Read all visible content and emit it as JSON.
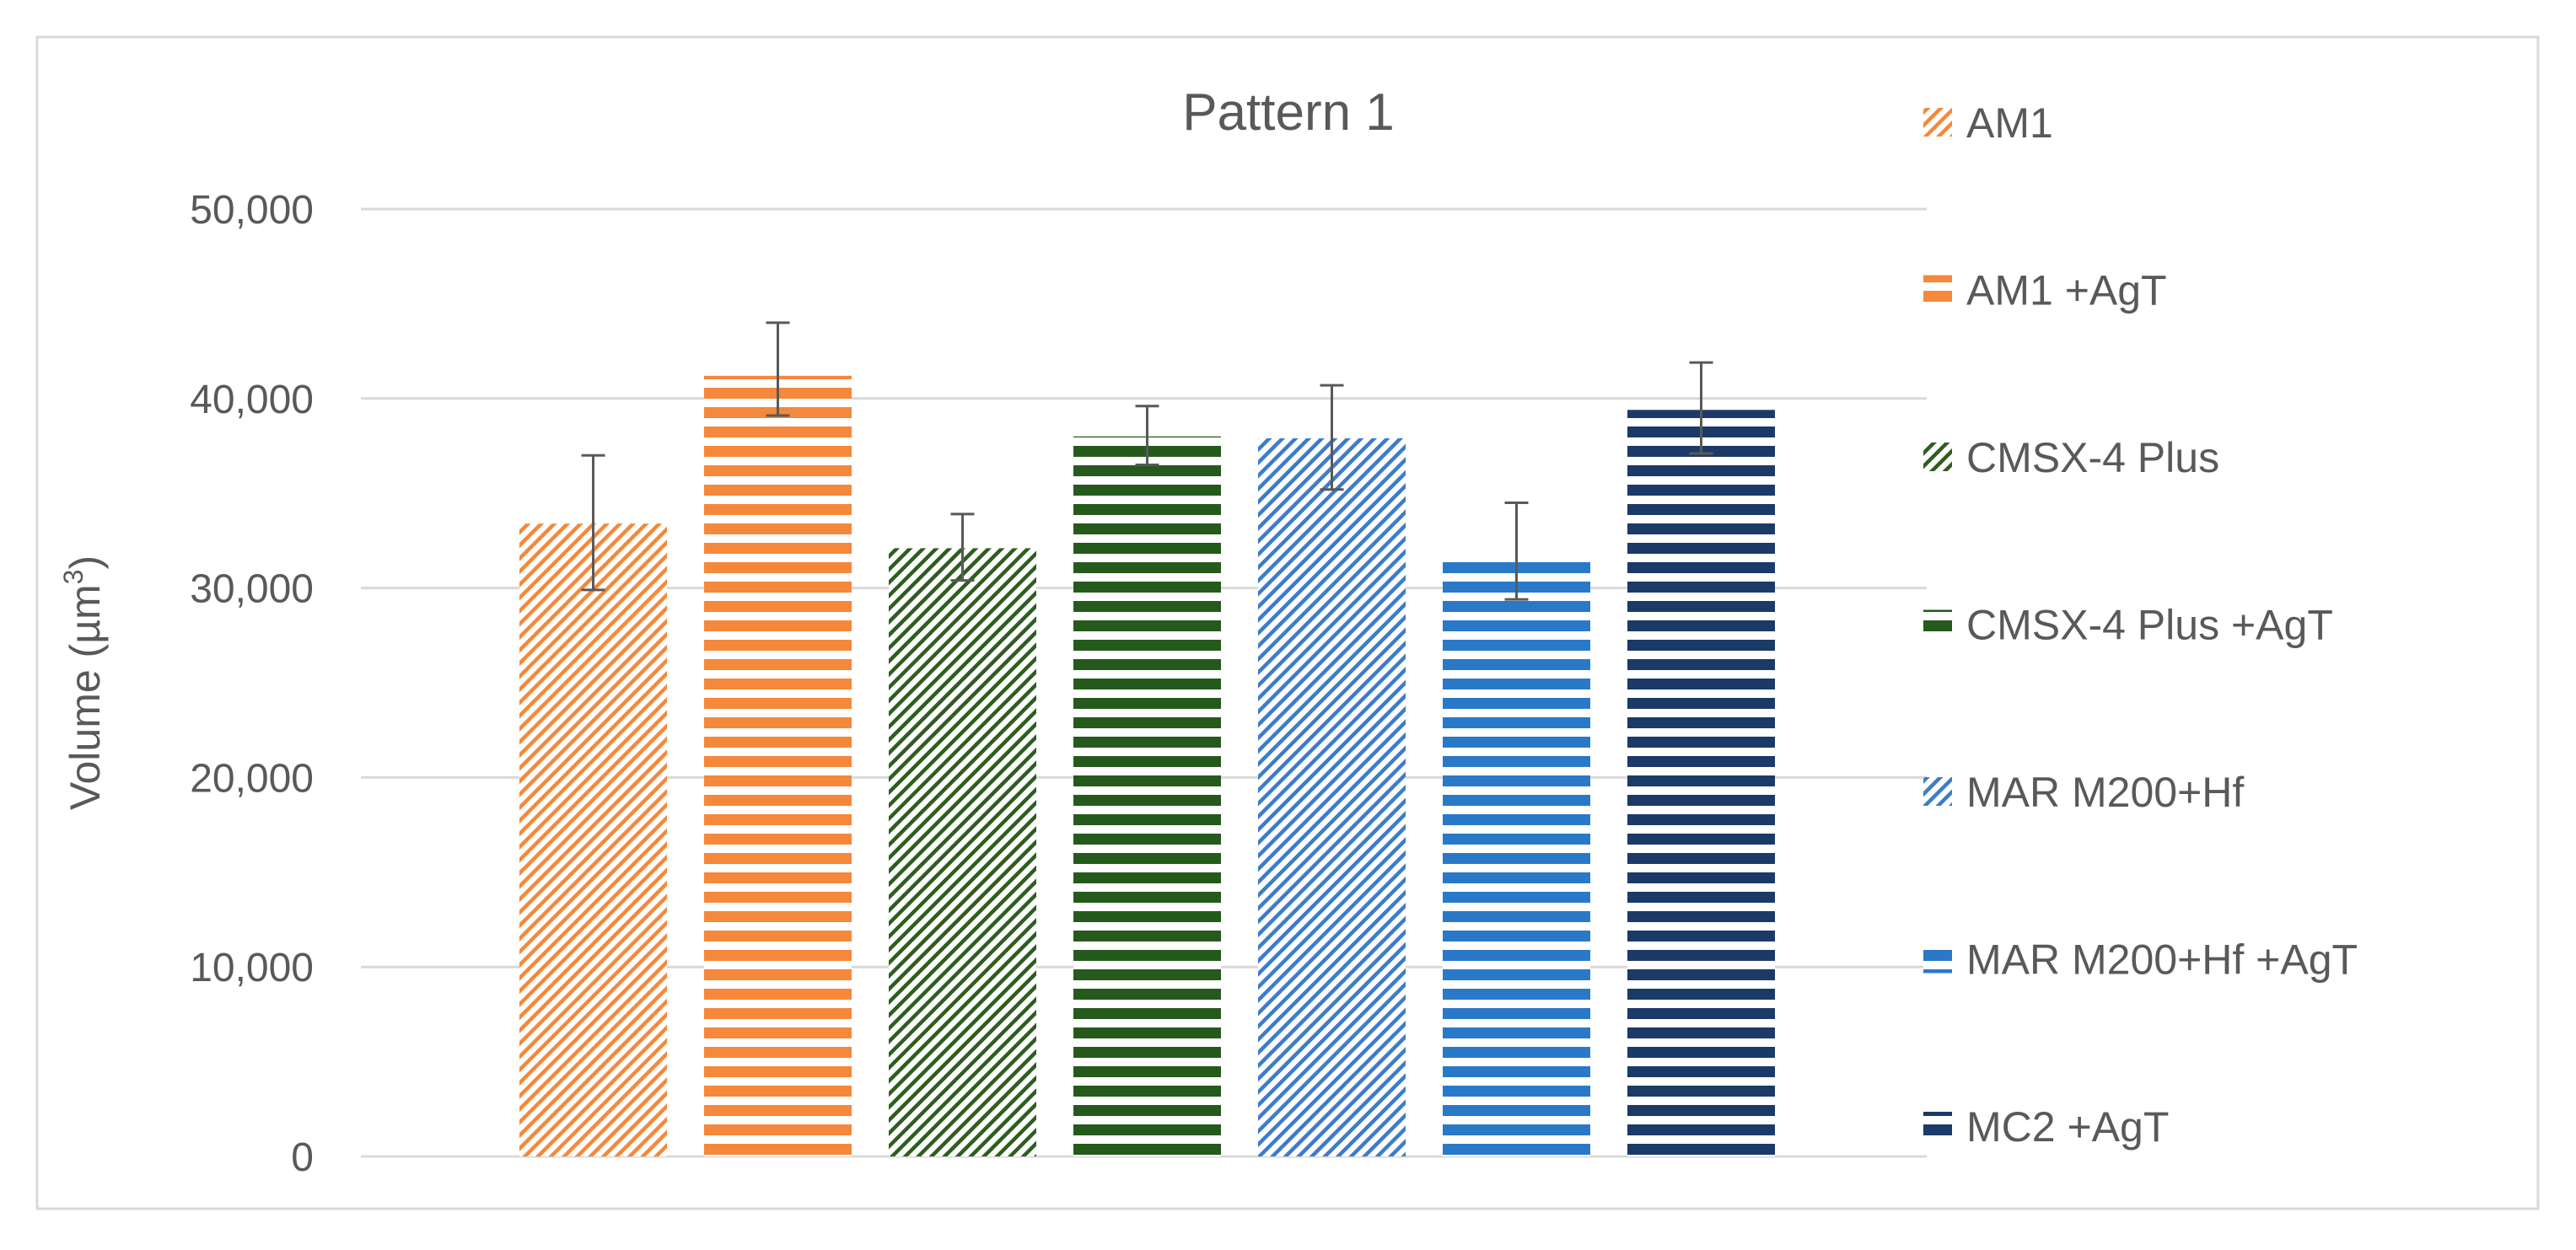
{
  "chart_data": {
    "type": "bar",
    "title": "Pattern 1",
    "ylabel": "Volume (µm³)",
    "ylabel_parts": {
      "main": "Volume (µm",
      "sup": "3",
      "close": ")"
    },
    "ylim": [
      0,
      50000
    ],
    "yticks": [
      0,
      10000,
      20000,
      30000,
      40000,
      50000
    ],
    "ytick_labels": [
      "0",
      "10,000",
      "20,000",
      "30,000",
      "40,000",
      "50,000"
    ],
    "grid": true,
    "legend_position": "right",
    "series": [
      {
        "name": "AM1",
        "value": 33400,
        "error_low": 29900,
        "error_high": 37000,
        "color": "#F5883A",
        "pattern": "diagonal"
      },
      {
        "name": "AM1 +AgT",
        "value": 41200,
        "error_low": 39100,
        "error_high": 44000,
        "color": "#F5883A",
        "pattern": "horizontal"
      },
      {
        "name": "CMSX-4 Plus",
        "value": 32100,
        "error_low": 30400,
        "error_high": 33900,
        "color": "#2D5E1E",
        "pattern": "diagonal"
      },
      {
        "name": "CMSX-4 Plus +AgT",
        "value": 38000,
        "error_low": 36500,
        "error_high": 39600,
        "color": "#255A1C",
        "pattern": "horizontal"
      },
      {
        "name": "MAR M200+Hf",
        "value": 37900,
        "error_low": 35200,
        "error_high": 40700,
        "color": "#3E7BCB",
        "pattern": "diagonal"
      },
      {
        "name": "MAR M200+Hf +AgT",
        "value": 31800,
        "error_low": 29400,
        "error_high": 34500,
        "color": "#2A79C8",
        "pattern": "horizontal"
      },
      {
        "name": "MC2 +AgT",
        "value": 39400,
        "error_low": 37100,
        "error_high": 41900,
        "color": "#1B3A67",
        "pattern": "horizontal"
      }
    ]
  }
}
